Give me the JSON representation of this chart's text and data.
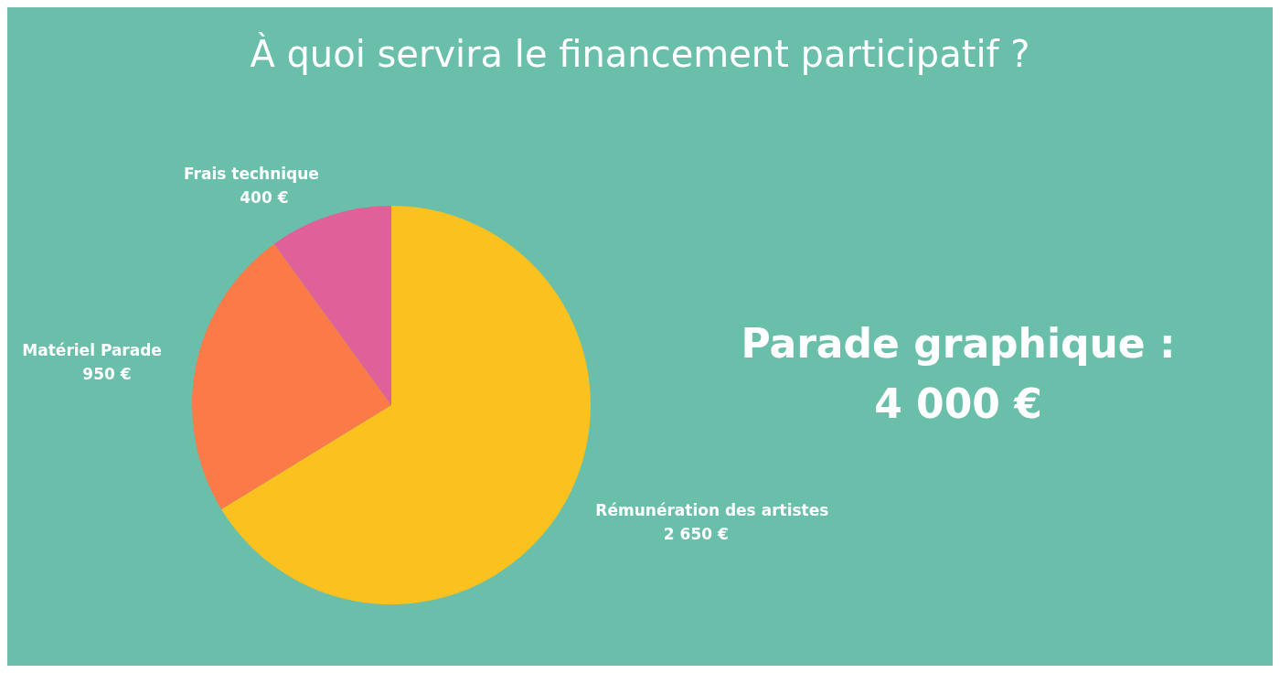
{
  "chart_data": {
    "type": "pie",
    "title": "À quoi servira le financement participatif ?",
    "categories": [
      "Rémunération des artistes",
      "Matériel Parade",
      "Frais technique"
    ],
    "values": [
      2650,
      950,
      400
    ],
    "value_labels": [
      "2 650 €",
      "950 €",
      "400 €"
    ],
    "colors": [
      "#fbc21f",
      "#fc7a47",
      "#e0609a"
    ],
    "annotations": [
      "Parade graphique :",
      "4 000 €"
    ]
  }
}
